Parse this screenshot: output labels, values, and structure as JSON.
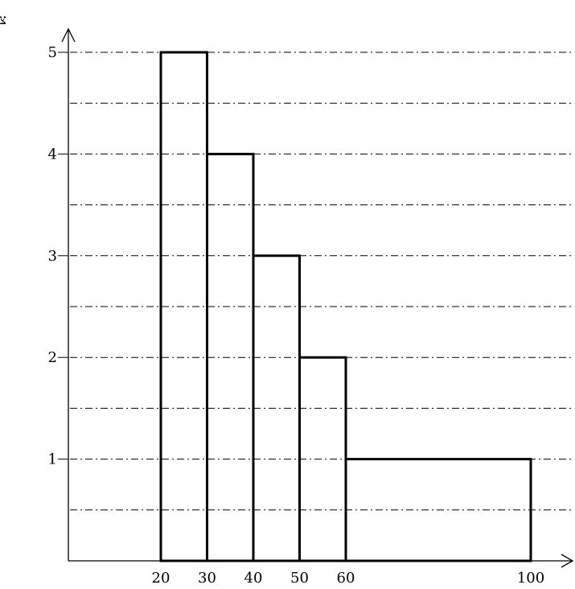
{
  "chart_data": {
    "type": "bar",
    "ylabel": "צפיפות",
    "xlabel": "",
    "y_ticks": [
      "1",
      "2",
      "3",
      "4",
      "5"
    ],
    "x_ticks": [
      "20",
      "30",
      "40",
      "50",
      "60",
      "100"
    ],
    "ylim": [
      0,
      5
    ],
    "xlim": [
      0,
      110
    ],
    "grid": "dash-dot horizontal lines every 0.5",
    "bins": [
      {
        "from": 20,
        "to": 30,
        "value": 5
      },
      {
        "from": 30,
        "to": 40,
        "value": 4
      },
      {
        "from": 40,
        "to": 50,
        "value": 3
      },
      {
        "from": 50,
        "to": 60,
        "value": 2
      },
      {
        "from": 60,
        "to": 100,
        "value": 1
      }
    ]
  }
}
